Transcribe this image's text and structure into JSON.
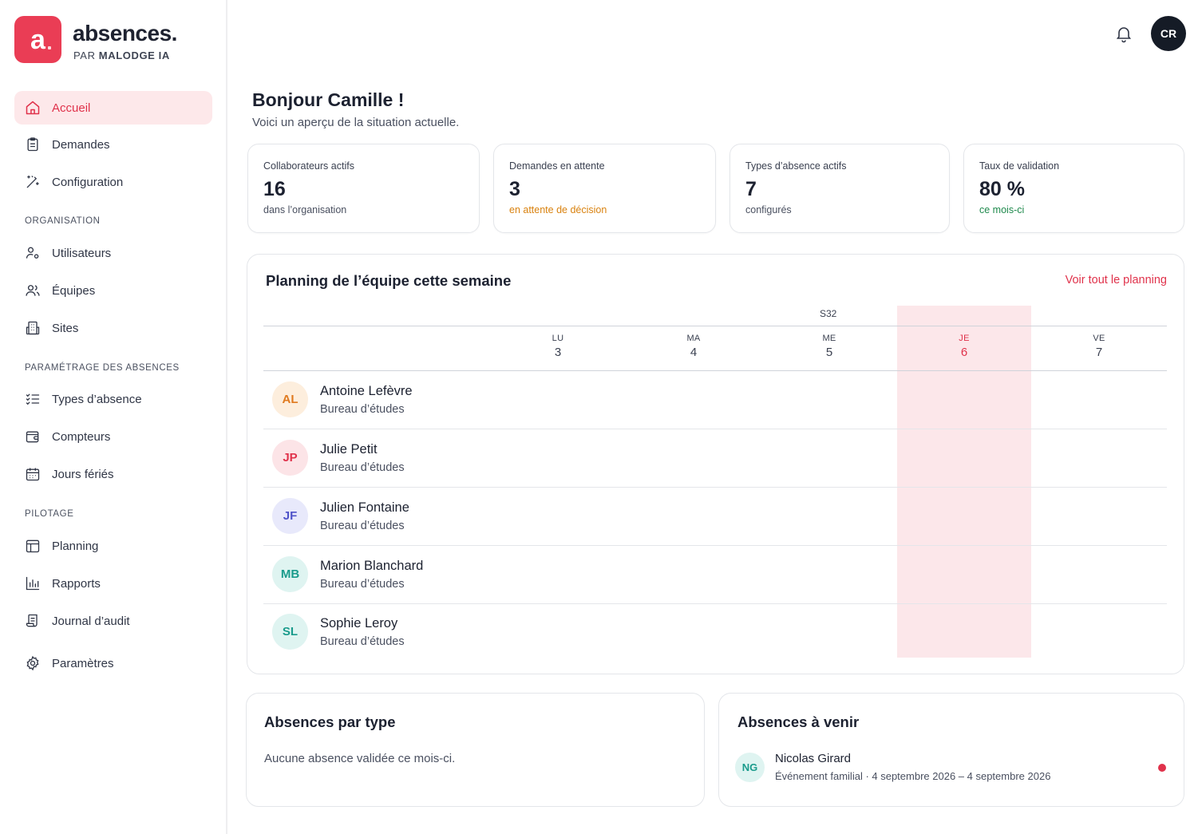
{
  "brand": {
    "logo_letter": "a",
    "name": "absences.",
    "sub_prefix": "PAR",
    "sub_bold": "MALODGE IA",
    "color": "#ea3d55"
  },
  "nav": {
    "main": [
      {
        "label": "Accueil",
        "icon": "home-icon",
        "active": true
      },
      {
        "label": "Demandes",
        "icon": "clipboard-icon"
      },
      {
        "label": "Configuration",
        "icon": "wand-icon"
      }
    ],
    "sections": [
      {
        "title": "ORGANISATION",
        "items": [
          {
            "label": "Utilisateurs",
            "icon": "user-gear-icon"
          },
          {
            "label": "Équipes",
            "icon": "users-icon"
          },
          {
            "label": "Sites",
            "icon": "building-icon"
          }
        ]
      },
      {
        "title": "PARAMÉTRAGE DES ABSENCES",
        "items": [
          {
            "label": "Types d’absence",
            "icon": "list-check-icon"
          },
          {
            "label": "Compteurs",
            "icon": "wallet-icon"
          },
          {
            "label": "Jours fériés",
            "icon": "calendar-icon"
          }
        ]
      },
      {
        "title": "PILOTAGE",
        "items": [
          {
            "label": "Planning",
            "icon": "planning-icon"
          },
          {
            "label": "Rapports",
            "icon": "bar-chart-icon"
          },
          {
            "label": "Journal d’audit",
            "icon": "scroll-icon"
          }
        ]
      }
    ],
    "settings": {
      "label": "Paramètres",
      "icon": "gear-icon"
    }
  },
  "header": {
    "user_initials": "CR"
  },
  "greeting": {
    "title": "Bonjour Camille !",
    "subtitle": "Voici un aperçu de la situation actuelle."
  },
  "stats": [
    {
      "label": "Collaborateurs actifs",
      "value": "16",
      "sub": "dans l’organisation",
      "tone": "neutral"
    },
    {
      "label": "Demandes en attente",
      "value": "3",
      "sub": "en attente de décision",
      "tone": "orange"
    },
    {
      "label": "Types d’absence actifs",
      "value": "7",
      "sub": "configurés",
      "tone": "neutral"
    },
    {
      "label": "Taux de validation",
      "value": "80 %",
      "sub": "ce mois-ci",
      "tone": "green"
    }
  ],
  "planning": {
    "title": "Planning de l’équipe cette semaine",
    "link": "Voir tout le planning",
    "week": "S32",
    "days": [
      {
        "name": "LU",
        "num": "3"
      },
      {
        "name": "MA",
        "num": "4"
      },
      {
        "name": "ME",
        "num": "5"
      },
      {
        "name": "JE",
        "num": "6",
        "today": true
      },
      {
        "name": "VE",
        "num": "7"
      }
    ],
    "rows": [
      {
        "initials": "AL",
        "name": "Antoine Lefèvre",
        "dept": "Bureau d’études",
        "bg": "#fdeedd",
        "fg": "#e07a1f"
      },
      {
        "initials": "JP",
        "name": "Julie Petit",
        "dept": "Bureau d’études",
        "bg": "#fce4e7",
        "fg": "#e0324b"
      },
      {
        "initials": "JF",
        "name": "Julien Fontaine",
        "dept": "Bureau d’études",
        "bg": "#e8e9fb",
        "fg": "#4f53c9"
      },
      {
        "initials": "MB",
        "name": "Marion Blanchard",
        "dept": "Bureau d’études",
        "bg": "#dff4f1",
        "fg": "#1a9b8c"
      },
      {
        "initials": "SL",
        "name": "Sophie Leroy",
        "dept": "Bureau d’études",
        "bg": "#dff4f1",
        "fg": "#1a9b8c"
      }
    ]
  },
  "absences_by_type": {
    "title": "Absences par type",
    "empty": "Aucune absence validée ce mois-ci."
  },
  "upcoming": {
    "title": "Absences à venir",
    "items": [
      {
        "initials": "NG",
        "name": "Nicolas Girard",
        "detail": "Événement familial · 4 septembre 2026  –  4 septembre 2026"
      }
    ]
  }
}
